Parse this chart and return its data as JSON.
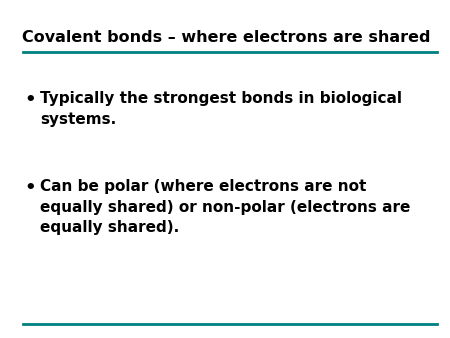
{
  "title": "Covalent bonds – where electrons are shared",
  "title_color": "#000000",
  "title_fontsize": 11.5,
  "title_bold": true,
  "background_color": "#ffffff",
  "line_color": "#008080",
  "bullet_points": [
    "Typically the strongest bonds in biological\nsystems.",
    "Can be polar (where electrons are not\nequally shared) or non-polar (electrons are\nequally shared)."
  ],
  "bullet_fontsize": 11,
  "bullet_color": "#000000",
  "bullet_bold": true,
  "figsize": [
    4.5,
    3.38
  ],
  "dpi": 100
}
